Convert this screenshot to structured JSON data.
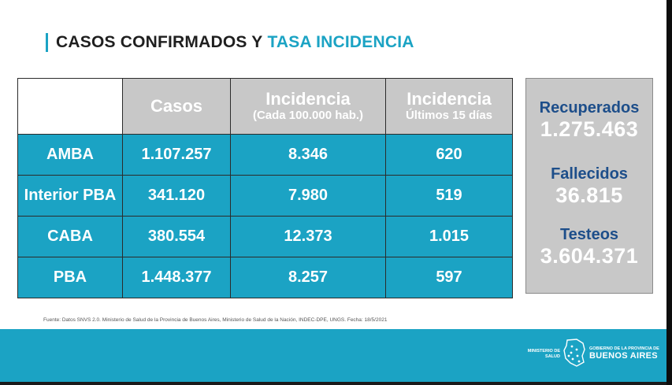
{
  "title": {
    "part1": "CASOS CONFIRMADOS Y",
    "part2": "TASA INCIDENCIA"
  },
  "table": {
    "headers": [
      {
        "line1": "Casos",
        "line2": ""
      },
      {
        "line1": "Incidencia",
        "line2": "(Cada 100.000 hab.)"
      },
      {
        "line1": "Incidencia",
        "line2": "Últimos 15 días"
      }
    ],
    "rows": [
      {
        "label": "AMBA",
        "casos": "1.107.257",
        "incidencia": "8.346",
        "ultimos": "620"
      },
      {
        "label": "Interior PBA",
        "casos": "341.120",
        "incidencia": "7.980",
        "ultimos": "519"
      },
      {
        "label": "CABA",
        "casos": "380.554",
        "incidencia": "12.373",
        "ultimos": "1.015"
      },
      {
        "label": "PBA",
        "casos": "1.448.377",
        "incidencia": "8.257",
        "ultimos": "597"
      }
    ]
  },
  "stats": [
    {
      "label": "Recuperados",
      "value": "1.275.463"
    },
    {
      "label": "Fallecidos",
      "value": "36.815"
    },
    {
      "label": "Testeos",
      "value": "3.604.371"
    }
  ],
  "source": "Fuente: Datos SNVS 2.0. Ministerio de Salud de la Provincia de Buenos Aires, Ministerio de Salud de la Nación, INDEC-DPE, UNGS. Fecha: 18/5/2021",
  "footer": {
    "ministry_line1": "MINISTERIO DE",
    "ministry_line2": "SALUD",
    "gov_line1": "GOBIERNO DE LA PROVINCIA DE",
    "gov_line2": "BUENOS AIRES"
  },
  "colors": {
    "accent": "#1ba3c4",
    "header_gray": "#c8c8c8",
    "stat_label": "#1d4e8a"
  },
  "icons": [
    "province-map-logo"
  ]
}
